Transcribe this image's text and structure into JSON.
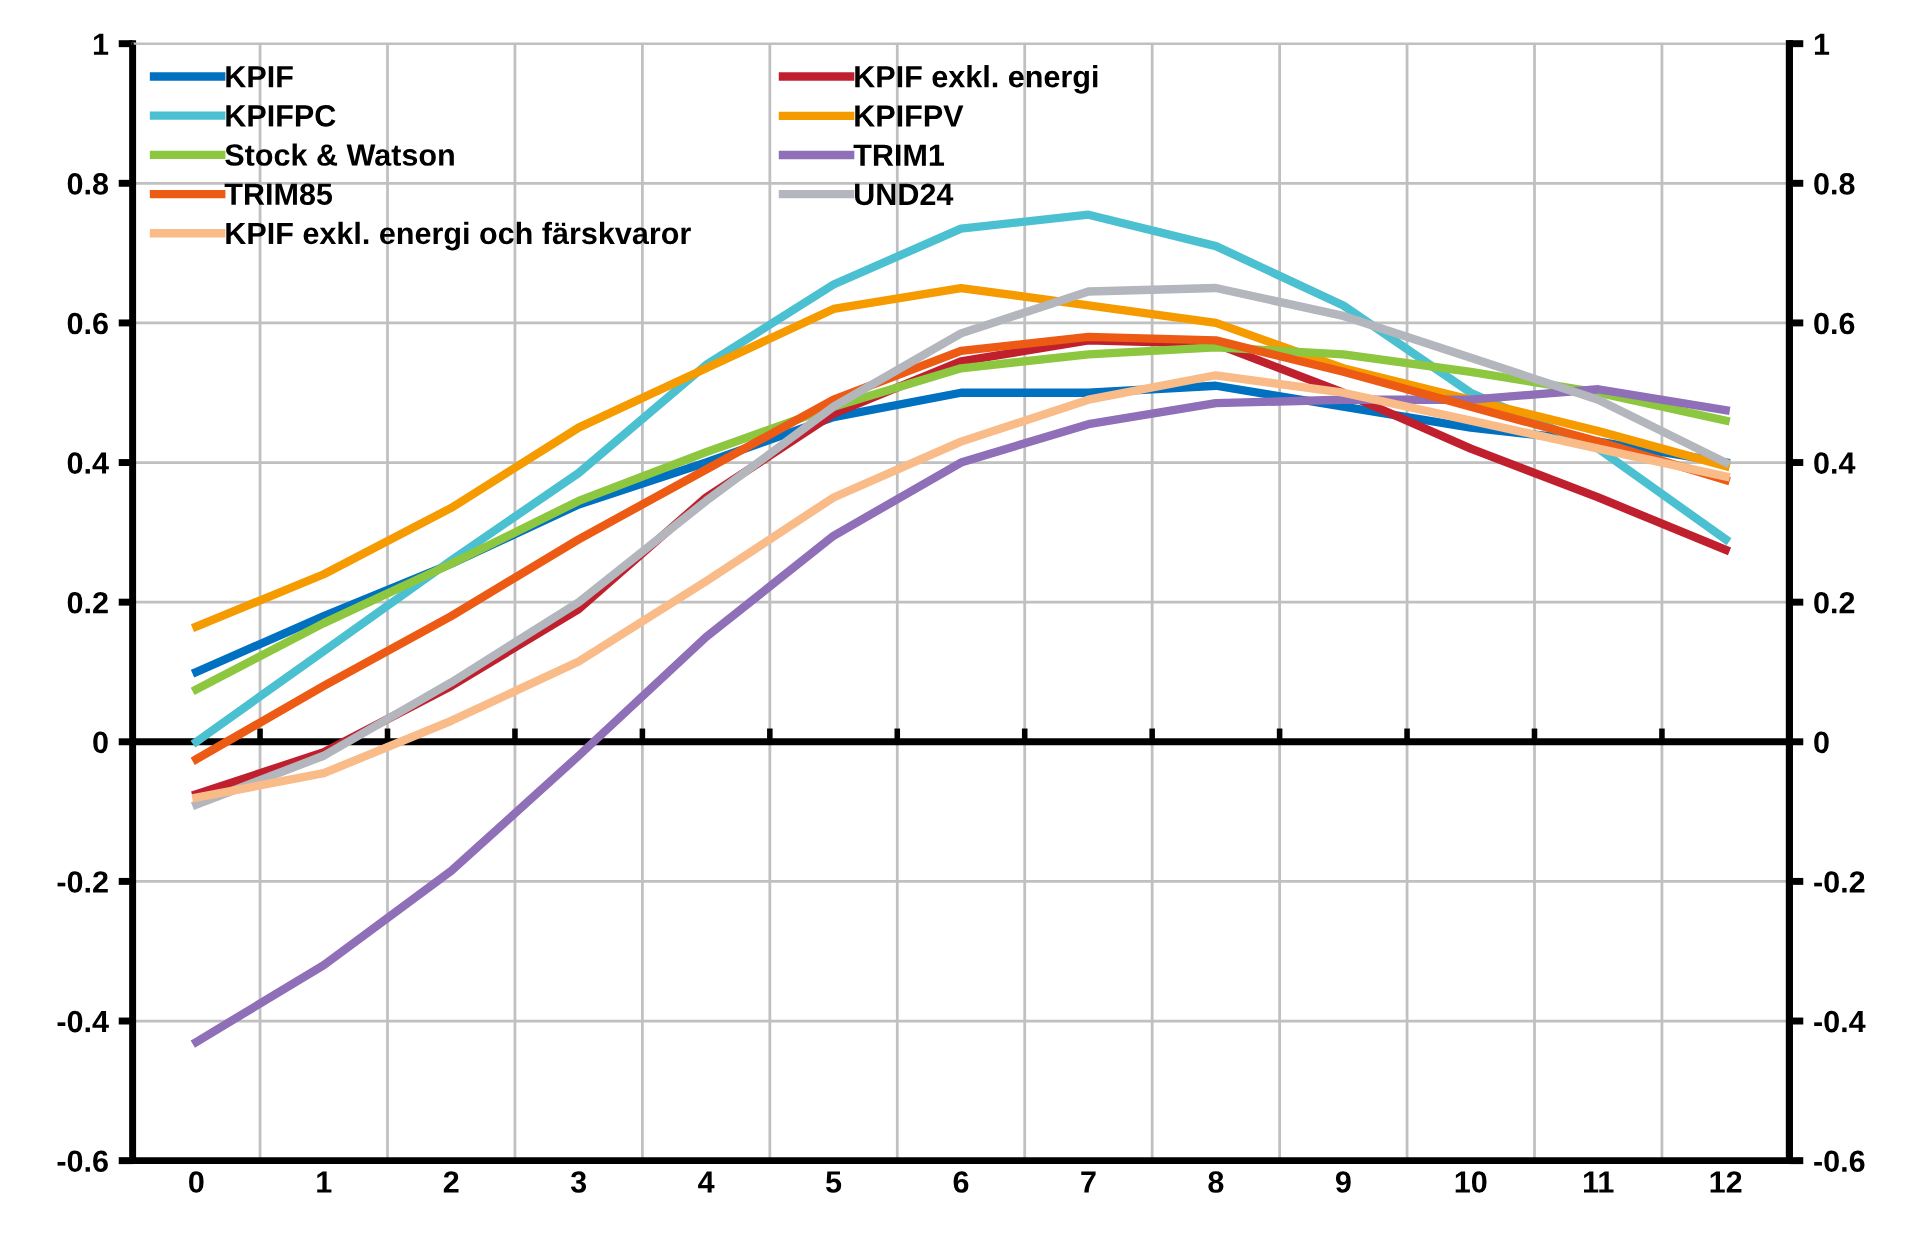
{
  "chart_data": {
    "type": "line",
    "categories": [
      "0",
      "1",
      "2",
      "3",
      "4",
      "5",
      "6",
      "7",
      "8",
      "9",
      "10",
      "11",
      "12"
    ],
    "series": [
      {
        "name": "KPIF",
        "color": "#0070c0",
        "values": [
          0.1,
          0.18,
          0.255,
          0.34,
          0.4,
          0.465,
          0.5,
          0.5,
          0.51,
          0.48,
          0.45,
          0.43,
          0.4
        ]
      },
      {
        "name": "KPIF exkl. energi",
        "color": "#c0202e",
        "values": [
          -0.075,
          -0.015,
          0.08,
          0.19,
          0.35,
          0.47,
          0.545,
          0.575,
          0.57,
          0.5,
          0.42,
          0.35,
          0.275
        ]
      },
      {
        "name": "KPIFPC",
        "color": "#4bc0d0",
        "values": [
          0.0,
          0.13,
          0.26,
          0.385,
          0.54,
          0.655,
          0.735,
          0.755,
          0.71,
          0.625,
          0.5,
          0.42,
          0.29
        ]
      },
      {
        "name": "KPIFPV",
        "color": "#f59b00",
        "values": [
          0.165,
          0.24,
          0.335,
          0.45,
          0.535,
          0.62,
          0.65,
          0.625,
          0.6,
          0.535,
          0.49,
          0.445,
          0.395
        ]
      },
      {
        "name": "Stock & Watson",
        "color": "#8dc63f",
        "values": [
          0.075,
          0.17,
          0.255,
          0.345,
          0.415,
          0.48,
          0.535,
          0.555,
          0.565,
          0.555,
          0.53,
          0.5,
          0.46
        ]
      },
      {
        "name": "TRIM1",
        "color": "#8e6fb8",
        "values": [
          -0.43,
          -0.32,
          -0.185,
          -0.02,
          0.15,
          0.295,
          0.4,
          0.455,
          0.485,
          0.49,
          0.49,
          0.505,
          0.475
        ]
      },
      {
        "name": "TRIM85",
        "color": "#ec5a14",
        "values": [
          -0.025,
          0.08,
          0.18,
          0.29,
          0.39,
          0.49,
          0.56,
          0.58,
          0.575,
          0.53,
          0.48,
          0.43,
          0.375
        ]
      },
      {
        "name": "UND24",
        "color": "#b3b7bd",
        "values": [
          -0.09,
          -0.02,
          0.085,
          0.2,
          0.345,
          0.48,
          0.585,
          0.645,
          0.65,
          0.61,
          0.55,
          0.49,
          0.4
        ]
      },
      {
        "name": "KPIF exkl. energi och färskvaror",
        "color": "#f9bb88",
        "values": [
          -0.08,
          -0.045,
          0.03,
          0.115,
          0.23,
          0.35,
          0.43,
          0.49,
          0.525,
          0.5,
          0.46,
          0.42,
          0.38
        ]
      }
    ],
    "ylim": [
      -0.6,
      1
    ],
    "yticks": [
      -0.6,
      -0.4,
      -0.2,
      0,
      0.2,
      0.4,
      0.6,
      0.8,
      1
    ],
    "y2lim": [
      -0.6,
      1
    ],
    "y2ticks": [
      -0.6,
      -0.4,
      -0.2,
      0,
      0.2,
      0.4,
      0.6,
      0.8,
      1
    ],
    "ref_lines": [
      {
        "axis": "y",
        "value": 0,
        "color": "#000000"
      }
    ],
    "grid": true,
    "legend": "top left",
    "line_style": "solid",
    "marker": "none"
  }
}
